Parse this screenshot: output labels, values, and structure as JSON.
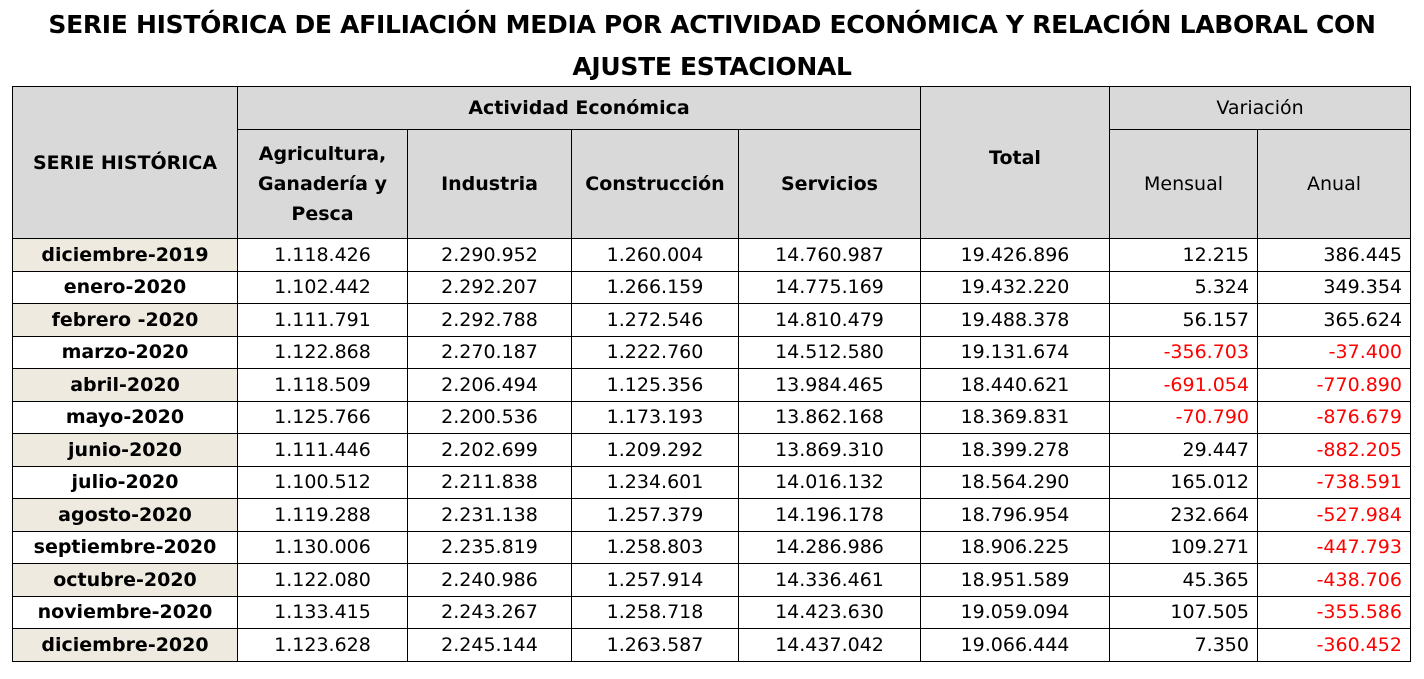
{
  "title": "SERIE HISTÓRICA DE AFILIACIÓN MEDIA POR ACTIVIDAD ECONÓMICA Y RELACIÓN LABORAL CON AJUSTE ESTACIONAL",
  "header": {
    "serie_label": "SERIE HISTÓRICA",
    "actividad_label": "Actividad Económica",
    "agricultura_label": "Agricultura, Ganadería y Pesca",
    "industria_label": "Industria",
    "construccion_label": "Construcción",
    "servicios_label": "Servicios",
    "total_label": "Total",
    "variacion_label": "Variación",
    "mensual_label": "Mensual",
    "anual_label": "Anual"
  },
  "rows": [
    {
      "label": "diciembre-2019",
      "agricultura": "1.118.426",
      "industria": "2.290.952",
      "construccion": "1.260.004",
      "servicios": "14.760.987",
      "total": "19.426.896",
      "mensual": "12.215",
      "anual": "386.445"
    },
    {
      "label": "enero-2020",
      "agricultura": "1.102.442",
      "industria": "2.292.207",
      "construccion": "1.266.159",
      "servicios": "14.775.169",
      "total": "19.432.220",
      "mensual": "5.324",
      "anual": "349.354"
    },
    {
      "label": "febrero -2020",
      "agricultura": "1.111.791",
      "industria": "2.292.788",
      "construccion": "1.272.546",
      "servicios": "14.810.479",
      "total": "19.488.378",
      "mensual": "56.157",
      "anual": "365.624"
    },
    {
      "label": "marzo-2020",
      "agricultura": "1.122.868",
      "industria": "2.270.187",
      "construccion": "1.222.760",
      "servicios": "14.512.580",
      "total": "19.131.674",
      "mensual": "-356.703",
      "anual": "-37.400"
    },
    {
      "label": "abril-2020",
      "agricultura": "1.118.509",
      "industria": "2.206.494",
      "construccion": "1.125.356",
      "servicios": "13.984.465",
      "total": "18.440.621",
      "mensual": "-691.054",
      "anual": "-770.890"
    },
    {
      "label": "mayo-2020",
      "agricultura": "1.125.766",
      "industria": "2.200.536",
      "construccion": "1.173.193",
      "servicios": "13.862.168",
      "total": "18.369.831",
      "mensual": "-70.790",
      "anual": "-876.679"
    },
    {
      "label": "junio-2020",
      "agricultura": "1.111.446",
      "industria": "2.202.699",
      "construccion": "1.209.292",
      "servicios": "13.869.310",
      "total": "18.399.278",
      "mensual": "29.447",
      "anual": "-882.205"
    },
    {
      "label": "julio-2020",
      "agricultura": "1.100.512",
      "industria": "2.211.838",
      "construccion": "1.234.601",
      "servicios": "14.016.132",
      "total": "18.564.290",
      "mensual": "165.012",
      "anual": "-738.591"
    },
    {
      "label": "agosto-2020",
      "agricultura": "1.119.288",
      "industria": "2.231.138",
      "construccion": "1.257.379",
      "servicios": "14.196.178",
      "total": "18.796.954",
      "mensual": "232.664",
      "anual": "-527.984"
    },
    {
      "label": "septiembre-2020",
      "agricultura": "1.130.006",
      "industria": "2.235.819",
      "construccion": "1.258.803",
      "servicios": "14.286.986",
      "total": "18.906.225",
      "mensual": "109.271",
      "anual": "-447.793"
    },
    {
      "label": "octubre-2020",
      "agricultura": "1.122.080",
      "industria": "2.240.986",
      "construccion": "1.257.914",
      "servicios": "14.336.461",
      "total": "18.951.589",
      "mensual": "45.365",
      "anual": "-438.706"
    },
    {
      "label": "noviembre-2020",
      "agricultura": "1.133.415",
      "industria": "2.243.267",
      "construccion": "1.258.718",
      "servicios": "14.423.630",
      "total": "19.059.094",
      "mensual": "107.505",
      "anual": "-355.586"
    },
    {
      "label": "diciembre-2020",
      "agricultura": "1.123.628",
      "industria": "2.245.144",
      "construccion": "1.263.587",
      "servicios": "14.437.042",
      "total": "19.066.444",
      "mensual": "7.350",
      "anual": "-360.452"
    }
  ],
  "colors": {
    "header_bg": "#d9d9d9",
    "label_shade": "#eeeadf",
    "negative": "#ff0000"
  }
}
